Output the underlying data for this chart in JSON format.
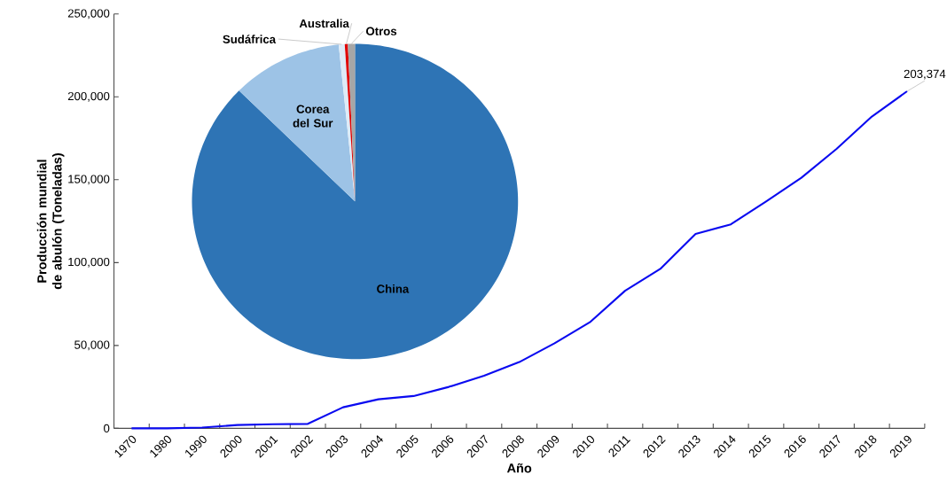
{
  "chart_data": [
    {
      "type": "line",
      "xlabel": "Año",
      "ylabel": "Producción mundial de abulón (Toneladas)",
      "categories": [
        "1970",
        "1980",
        "1990",
        "2000",
        "2001",
        "2002",
        "2003",
        "2004",
        "2005",
        "2006",
        "2007",
        "2008",
        "2009",
        "2010",
        "2011",
        "2012",
        "2013",
        "2014",
        "2015",
        "2016",
        "2017",
        "2018",
        "2019"
      ],
      "values": [
        0,
        0,
        500,
        2000,
        2500,
        2700,
        12700,
        17500,
        19500,
        25000,
        31700,
        40000,
        51300,
        64000,
        83000,
        96200,
        117300,
        123100,
        136900,
        151200,
        168600,
        188100,
        203374
      ],
      "value_labels": [
        null,
        null,
        null,
        null,
        null,
        null,
        null,
        null,
        null,
        null,
        null,
        null,
        null,
        null,
        null,
        null,
        null,
        null,
        null,
        null,
        null,
        null,
        "203,374"
      ],
      "color": "#0a0af0",
      "line_style": "solid",
      "ylim": [
        0,
        250000
      ],
      "yticks": [
        {
          "value": 0,
          "label": "0"
        },
        {
          "value": 50000,
          "label": "50,000"
        },
        {
          "value": 100000,
          "label": "100,000"
        },
        {
          "value": 150000,
          "label": "150,000"
        },
        {
          "value": 200000,
          "label": "200,000"
        },
        {
          "value": 250000,
          "label": "250,000"
        }
      ]
    },
    {
      "type": "pie",
      "categories": [
        "China",
        "Corea del Sur",
        "Sudáfrica",
        "Australia",
        "Otros"
      ],
      "values": [
        87.4,
        11,
        0.6,
        0.3,
        0.7
      ],
      "colors": [
        "#2e74b5",
        "#9dc3e6",
        "#deebf7",
        "#e00000",
        "#a6a6a6"
      ]
    }
  ]
}
